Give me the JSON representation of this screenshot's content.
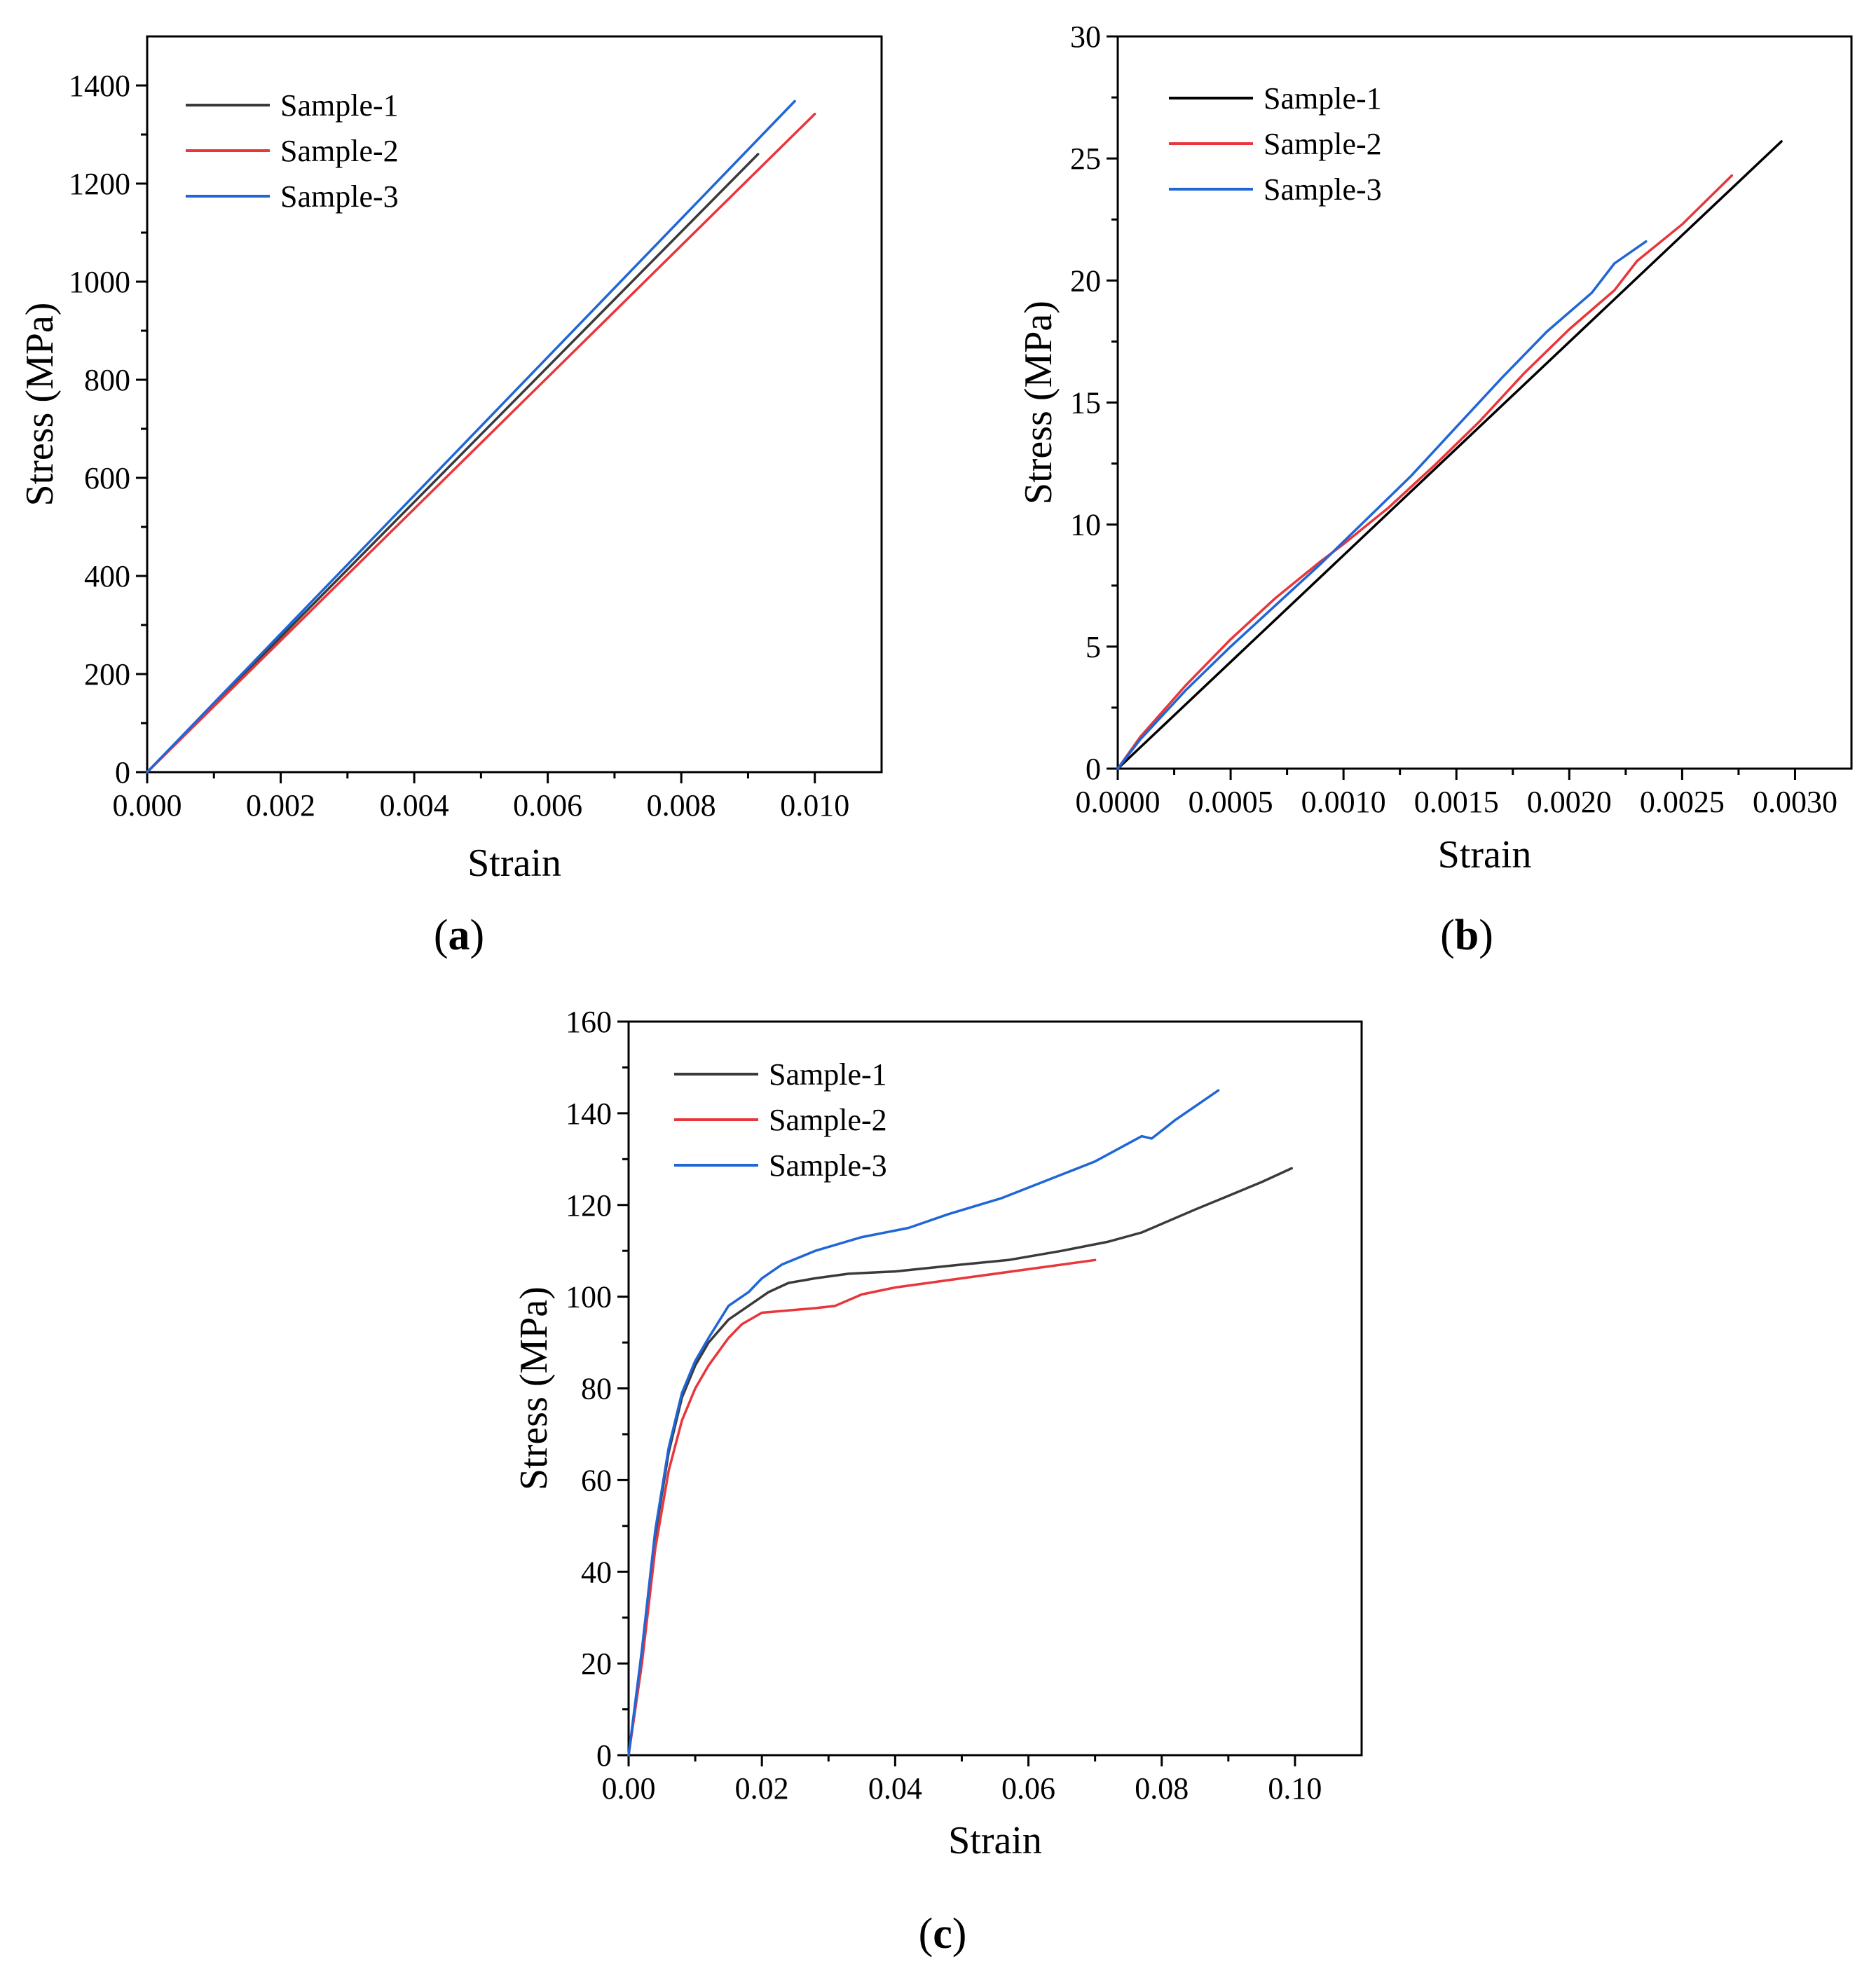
{
  "colors": {
    "sample1": "#3a3a3a",
    "sample2": "#e8363a",
    "sample3": "#1f66d6",
    "sample1_b": "#000000"
  },
  "chart_data": [
    {
      "id": "a",
      "type": "line",
      "panel_label": "a",
      "xlabel": "Strain",
      "ylabel": "Stress (MPa)",
      "xlim": [
        0,
        0.011
      ],
      "ylim": [
        0,
        1500
      ],
      "xticks": [
        "0.000",
        "0.002",
        "0.004",
        "0.006",
        "0.008",
        "0.010"
      ],
      "yticks": [
        "0",
        "200",
        "400",
        "600",
        "800",
        "1000",
        "1200",
        "1400"
      ],
      "legend": {
        "position": "top-left",
        "entries": [
          "Sample-1",
          "Sample-2",
          "Sample-3"
        ]
      },
      "series": [
        {
          "name": "Sample-1",
          "color_key": "sample1",
          "x": [
            0,
            0.00915
          ],
          "y": [
            0,
            1260
          ]
        },
        {
          "name": "Sample-2",
          "color_key": "sample2",
          "x": [
            0,
            0.01
          ],
          "y": [
            0,
            1342
          ]
        },
        {
          "name": "Sample-3",
          "color_key": "sample3",
          "x": [
            0,
            0.0097
          ],
          "y": [
            0,
            1368
          ]
        }
      ]
    },
    {
      "id": "b",
      "type": "line",
      "panel_label": "b",
      "xlabel": "Strain",
      "ylabel": "Stress (MPa)",
      "xlim": [
        0,
        0.00325
      ],
      "ylim": [
        0,
        30
      ],
      "xticks": [
        "0.0000",
        "0.0005",
        "0.0010",
        "0.0015",
        "0.0020",
        "0.0025",
        "0.0030"
      ],
      "yticks": [
        "0",
        "5",
        "10",
        "15",
        "20",
        "25",
        "30"
      ],
      "legend": {
        "position": "top-left",
        "entries": [
          "Sample-1",
          "Sample-2",
          "Sample-3"
        ]
      },
      "series": [
        {
          "name": "Sample-1",
          "color_key": "sample1_b",
          "x": [
            0,
            0.00294
          ],
          "y": [
            0,
            25.7
          ]
        },
        {
          "name": "Sample-2",
          "color_key": "sample2",
          "x": [
            0,
            0.0001,
            0.0003,
            0.0005,
            0.0007,
            0.0009,
            0.001,
            0.0012,
            0.0014,
            0.0016,
            0.0018,
            0.002,
            0.0022,
            0.0023,
            0.0025,
            0.00272
          ],
          "y": [
            0,
            1.3,
            3.4,
            5.3,
            7.0,
            8.5,
            9.2,
            10.7,
            12.4,
            14.2,
            16.2,
            18.0,
            19.6,
            20.8,
            22.3,
            24.3
          ]
        },
        {
          "name": "Sample-3",
          "color_key": "sample3",
          "x": [
            0,
            0.0001,
            0.0003,
            0.0005,
            0.0007,
            0.0009,
            0.0011,
            0.0013,
            0.0015,
            0.0017,
            0.0019,
            0.0021,
            0.0022,
            0.00234
          ],
          "y": [
            0,
            1.2,
            3.2,
            5.0,
            6.7,
            8.4,
            10.2,
            12.0,
            14.0,
            16.0,
            17.9,
            19.5,
            20.7,
            21.6
          ]
        }
      ]
    },
    {
      "id": "c",
      "type": "line",
      "panel_label": "c",
      "xlabel": "Strain",
      "ylabel": "Stress (MPa)",
      "xlim": [
        0,
        0.11
      ],
      "ylim": [
        0,
        160
      ],
      "xticks": [
        "0.00",
        "0.02",
        "0.04",
        "0.06",
        "0.08",
        "0.10"
      ],
      "yticks": [
        "0",
        "20",
        "40",
        "60",
        "80",
        "100",
        "120",
        "140",
        "160"
      ],
      "legend": {
        "position": "top-left",
        "entries": [
          "Sample-1",
          "Sample-2",
          "Sample-3"
        ]
      },
      "series": [
        {
          "name": "Sample-1",
          "color_key": "sample1",
          "x": [
            0,
            0.002,
            0.004,
            0.006,
            0.008,
            0.01,
            0.012,
            0.015,
            0.018,
            0.021,
            0.024,
            0.028,
            0.033,
            0.04,
            0.05,
            0.057,
            0.065,
            0.072,
            0.077,
            0.081,
            0.085,
            0.09,
            0.095,
            0.0995
          ],
          "y": [
            0,
            22,
            48,
            66,
            78,
            85,
            90,
            95,
            98,
            101,
            103,
            104,
            105,
            105.5,
            107,
            108,
            110,
            112,
            114,
            116.5,
            119,
            122,
            125,
            128
          ]
        },
        {
          "name": "Sample-2",
          "color_key": "sample2",
          "x": [
            0,
            0.002,
            0.004,
            0.006,
            0.008,
            0.01,
            0.012,
            0.015,
            0.017,
            0.02,
            0.024,
            0.028,
            0.031,
            0.035,
            0.04,
            0.05,
            0.06,
            0.07
          ],
          "y": [
            0,
            20,
            45,
            62,
            73,
            80,
            85,
            91,
            94,
            96.5,
            97,
            97.5,
            98,
            100.5,
            102,
            104,
            106,
            108
          ]
        },
        {
          "name": "Sample-3",
          "color_key": "sample3",
          "x": [
            0,
            0.002,
            0.004,
            0.006,
            0.008,
            0.01,
            0.012,
            0.015,
            0.018,
            0.02,
            0.023,
            0.028,
            0.035,
            0.042,
            0.048,
            0.056,
            0.063,
            0.07,
            0.077,
            0.0785,
            0.082,
            0.085,
            0.0885
          ],
          "y": [
            0,
            23,
            49,
            67,
            79,
            86,
            91,
            98,
            101,
            104,
            107,
            110,
            113,
            115,
            118,
            121.5,
            125.5,
            129.5,
            135,
            134.5,
            138.5,
            141.5,
            145
          ]
        }
      ]
    }
  ]
}
